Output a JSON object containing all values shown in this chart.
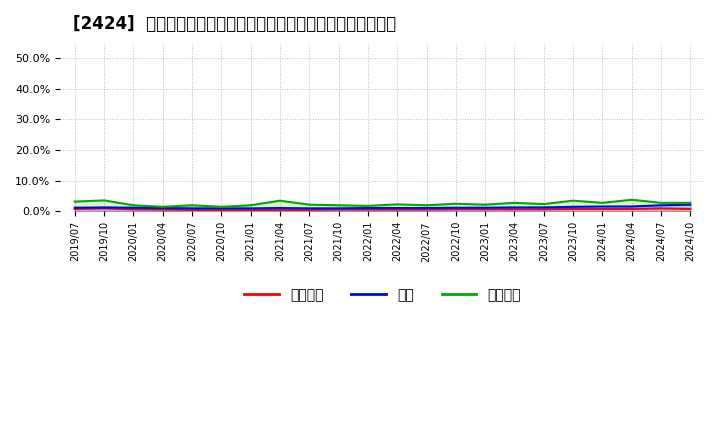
{
  "title": "[2424]  売上債権、在庫、買入債務の総資産に対する比率の推移",
  "ylim": [
    0.0,
    0.55
  ],
  "yticks": [
    0.0,
    0.1,
    0.2,
    0.3,
    0.4,
    0.5
  ],
  "ytick_labels": [
    "0.0%",
    "10.0%",
    "20.0%",
    "30.0%",
    "40.0%",
    "50.0%"
  ],
  "dates": [
    "2019/07",
    "2019/10",
    "2020/01",
    "2020/04",
    "2020/07",
    "2020/10",
    "2021/01",
    "2021/04",
    "2021/07",
    "2021/10",
    "2022/01",
    "2022/04",
    "2022/07",
    "2022/10",
    "2023/01",
    "2023/04",
    "2023/07",
    "2023/10",
    "2024/01",
    "2024/04",
    "2024/07",
    "2024/10"
  ],
  "売上債権": [
    0.008,
    0.01,
    0.007,
    0.006,
    0.005,
    0.005,
    0.005,
    0.005,
    0.005,
    0.006,
    0.006,
    0.006,
    0.006,
    0.007,
    0.007,
    0.007,
    0.007,
    0.008,
    0.008,
    0.008,
    0.01,
    0.008
  ],
  "在庫": [
    0.012,
    0.013,
    0.012,
    0.011,
    0.01,
    0.01,
    0.01,
    0.011,
    0.01,
    0.01,
    0.011,
    0.011,
    0.011,
    0.012,
    0.012,
    0.013,
    0.013,
    0.015,
    0.016,
    0.016,
    0.02,
    0.022
  ],
  "買入債務": [
    0.032,
    0.036,
    0.02,
    0.015,
    0.02,
    0.015,
    0.02,
    0.035,
    0.022,
    0.02,
    0.018,
    0.023,
    0.02,
    0.025,
    0.022,
    0.028,
    0.024,
    0.035,
    0.028,
    0.038,
    0.028,
    0.028
  ],
  "line_colors": {
    "売上債権": "#ff0000",
    "在庫": "#0000ff",
    "買入債務": "#00aa00"
  },
  "legend_labels": [
    "売上債権",
    "在庫",
    "買入債務"
  ],
  "background_color": "#ffffff",
  "grid_color": "#aaaaaa",
  "title_fontsize": 12,
  "legend_fontsize": 10
}
